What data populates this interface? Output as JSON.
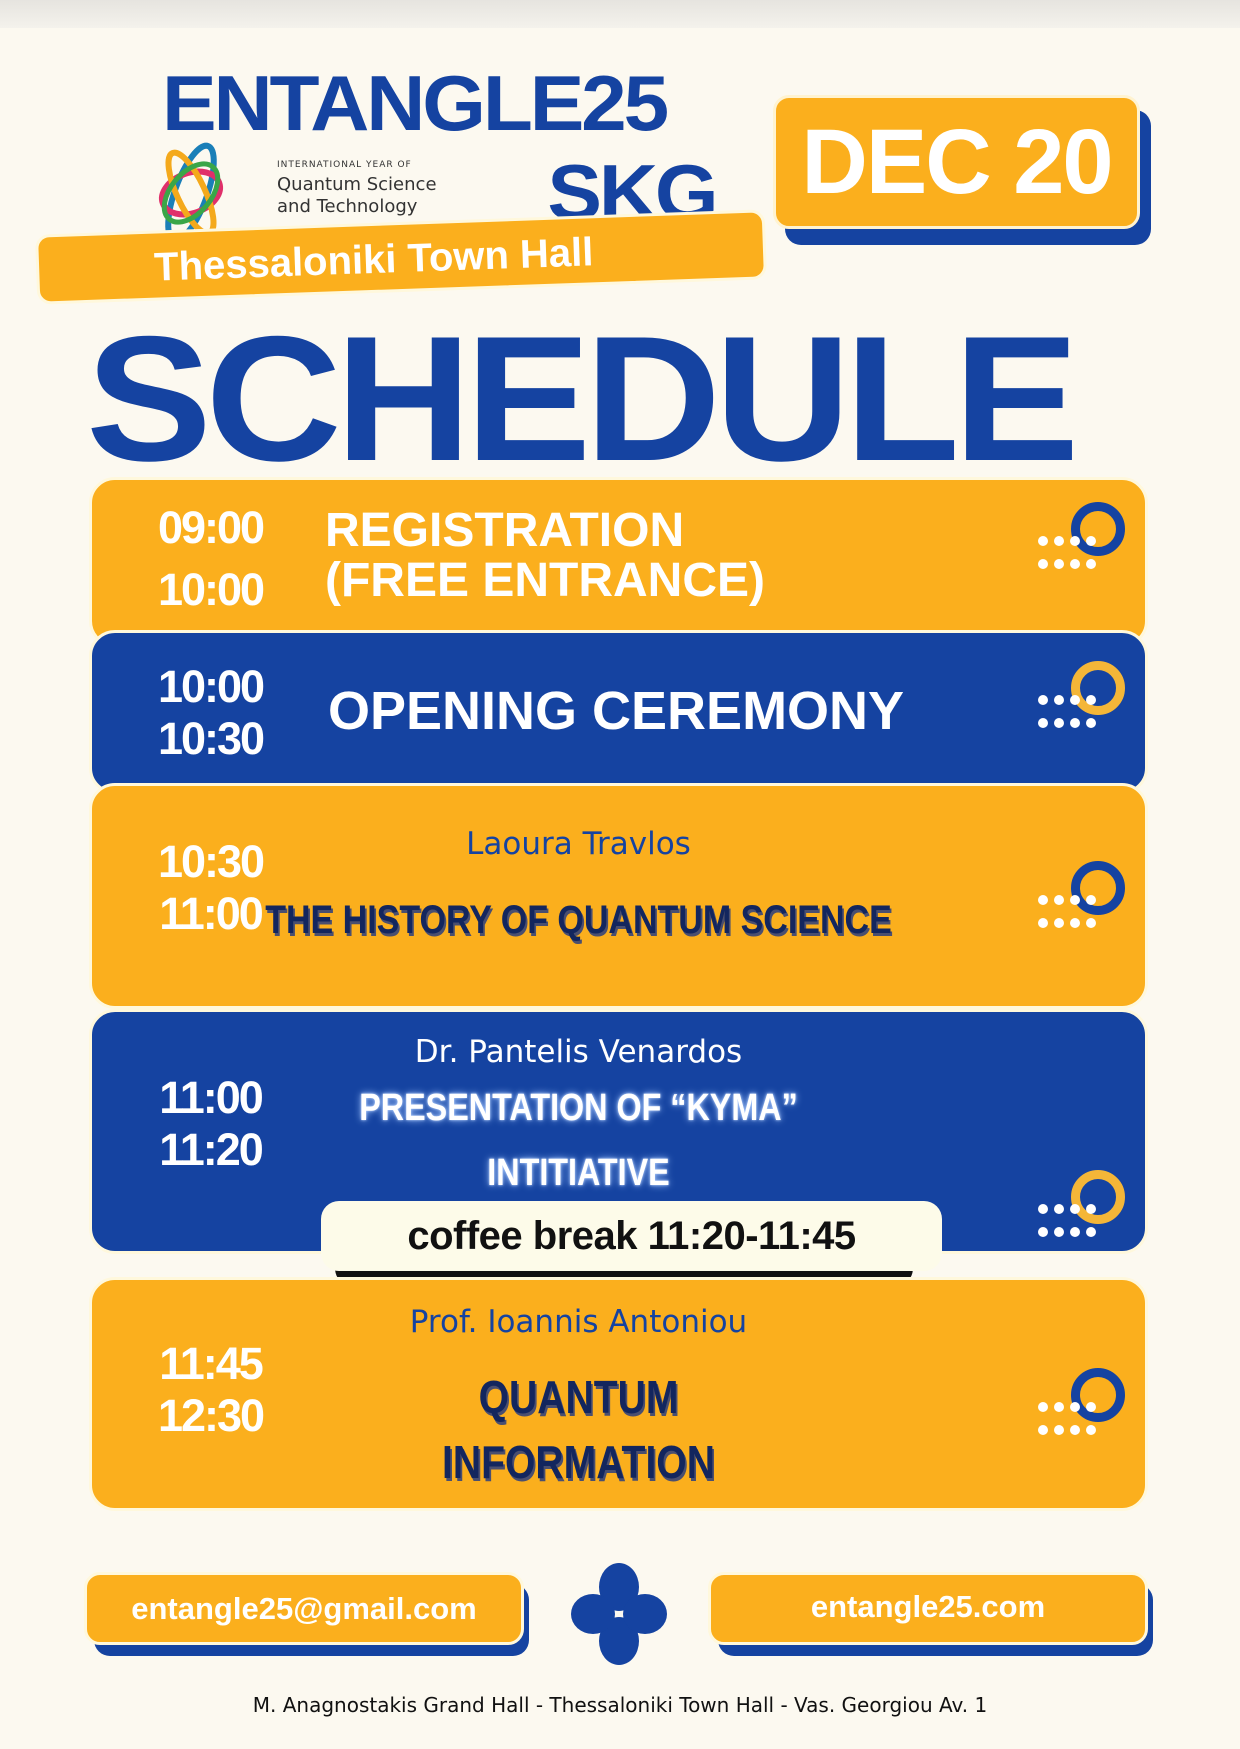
{
  "header": {
    "brand_line1": "ENTANGLE25",
    "brand_line2": "_SKG",
    "logo": {
      "line1": "INTERNATIONAL YEAR OF",
      "line2": "Quantum Science",
      "line3": "and Technology"
    },
    "date": "DEC 20",
    "venue": "Thessaloniki Town Hall",
    "title": "SCHEDULE"
  },
  "colors": {
    "blue": "#1543a1",
    "yellow": "#fbaf1d",
    "background": "#fcf9f0"
  },
  "schedule": [
    {
      "start": "09:00",
      "end": "10:00",
      "title_line1": "REGISTRATION",
      "title_line2": "(FREE ENTRANCE)"
    },
    {
      "start": "10:00",
      "end": "10:30",
      "title": "OPENING CEREMONY"
    },
    {
      "start": "10:30",
      "end": "11:00",
      "speaker": "Laoura Travlos",
      "title": "THE HISTORY OF QUANTUM SCIENCE"
    },
    {
      "start": "11:00",
      "end": "11:20",
      "speaker": "Dr. Pantelis Venardos",
      "title_line1": "PRESENTATION OF “KYMA”",
      "title_line2": "INTITIATIVE"
    },
    {
      "start": "11:45",
      "end": "12:30",
      "speaker": "Prof. Ioannis Antoniou",
      "title_line1": "QUANTUM",
      "title_line2": "INFORMATION"
    }
  ],
  "coffee_break": "coffee break 11:20-11:45",
  "footer": {
    "email": "entangle25@gmail.com",
    "website": "entangle25.com",
    "address": "M. Anagnostakis Grand Hall - Thessaloniki Town Hall - Vas. Georgiou Av. 1",
    "icon": "clover-icon"
  }
}
